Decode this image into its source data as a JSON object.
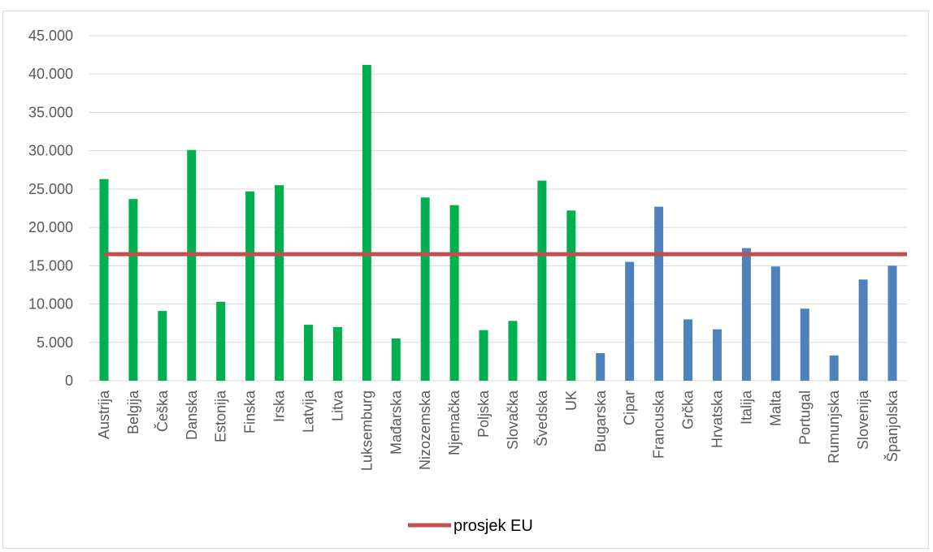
{
  "chart_data": {
    "type": "bar",
    "title": "",
    "xlabel": "",
    "ylabel": "",
    "ylim": [
      0,
      45000
    ],
    "ytick_values": [
      0,
      5000,
      10000,
      15000,
      20000,
      25000,
      30000,
      35000,
      40000,
      45000
    ],
    "ytick_labels": [
      "0",
      "5.000",
      "10.000",
      "15.000",
      "20.000",
      "25.000",
      "30.000",
      "35.000",
      "40.000",
      "45.000"
    ],
    "categories": [
      "Austrija",
      "Belgija",
      "Češka",
      "Danska",
      "Estonija",
      "Finska",
      "Irska",
      "Latvija",
      "Litva",
      "Luksemburg",
      "Mađarska",
      "Nizozemska",
      "Njemačka",
      "Poljska",
      "Slovačka",
      "Švedska",
      "UK",
      "Bugarska",
      "Cipar",
      "Francuska",
      "Grčka",
      "Hrvatska",
      "Italija",
      "Malta",
      "Portugal",
      "Rumunjska",
      "Slovenija",
      "Španjolska"
    ],
    "values": [
      26300,
      23700,
      9100,
      30100,
      10300,
      24700,
      25500,
      7300,
      7000,
      41200,
      5500,
      23900,
      22900,
      6600,
      7800,
      26100,
      22200,
      3600,
      15500,
      22700,
      8000,
      6700,
      17300,
      14900,
      9400,
      3300,
      13200,
      15000
    ],
    "bar_colors": [
      "#00b050",
      "#00b050",
      "#00b050",
      "#00b050",
      "#00b050",
      "#00b050",
      "#00b050",
      "#00b050",
      "#00b050",
      "#00b050",
      "#00b050",
      "#00b050",
      "#00b050",
      "#00b050",
      "#00b050",
      "#00b050",
      "#00b050",
      "#4f81bd",
      "#4f81bd",
      "#4f81bd",
      "#4f81bd",
      "#4f81bd",
      "#4f81bd",
      "#4f81bd",
      "#4f81bd",
      "#4f81bd",
      "#4f81bd",
      "#4f81bd"
    ],
    "series": [
      {
        "name": "prosjek EU",
        "type": "line",
        "value": 16500,
        "color": "#c0504d"
      }
    ],
    "grid": true,
    "gridline_color": "#d9d9d9",
    "legend": "bottom"
  }
}
